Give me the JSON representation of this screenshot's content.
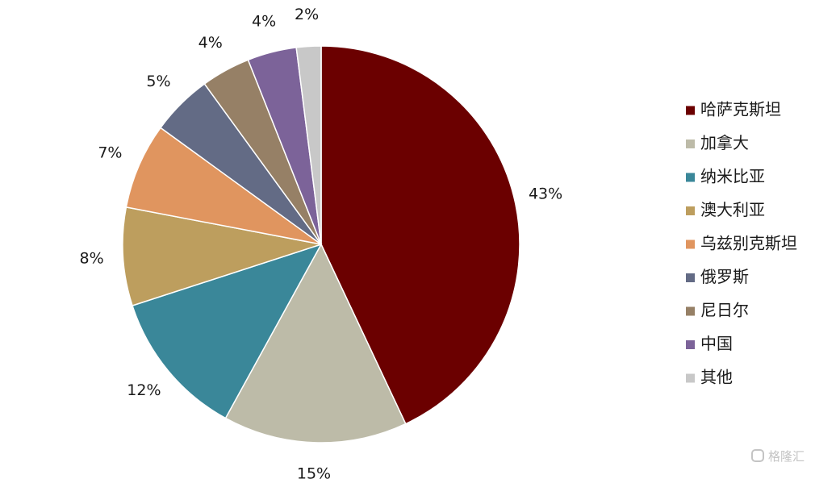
{
  "chart_data": {
    "type": "pie",
    "start_angle_deg": 0,
    "direction": "clockwise",
    "legend_position": "right",
    "slices": [
      {
        "label": "哈萨克斯坦",
        "value": 43,
        "value_label": "43%",
        "color": "#6b0000"
      },
      {
        "label": "加拿大",
        "value": 15,
        "value_label": "15%",
        "color": "#bdbba8"
      },
      {
        "label": "纳米比亚",
        "value": 12,
        "value_label": "12%",
        "color": "#3a8799"
      },
      {
        "label": "澳大利亚",
        "value": 8,
        "value_label": "8%",
        "color": "#bd9e5e"
      },
      {
        "label": "乌兹别克斯坦",
        "value": 7,
        "value_label": "7%",
        "color": "#e0955f"
      },
      {
        "label": "俄罗斯",
        "value": 5,
        "value_label": "5%",
        "color": "#636b85"
      },
      {
        "label": "尼日尔",
        "value": 4,
        "value_label": "4%",
        "color": "#968066"
      },
      {
        "label": "中国",
        "value": 4,
        "value_label": "4%",
        "color": "#7c6399"
      },
      {
        "label": "其他",
        "value": 2,
        "value_label": "2%",
        "color": "#c8c8c8"
      }
    ]
  },
  "watermark": {
    "text": "格隆汇",
    "icon": "gelonghui-logo-icon"
  }
}
